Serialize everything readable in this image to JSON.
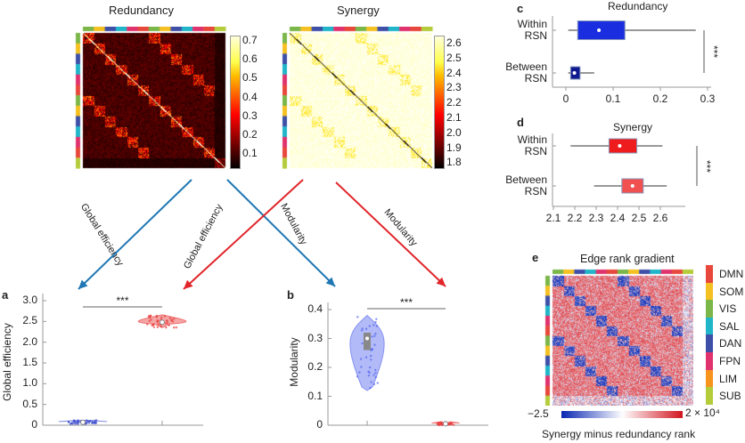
{
  "networks": [
    {
      "name": "DMN",
      "color": "#e8473b"
    },
    {
      "name": "SOM",
      "color": "#f5c021"
    },
    {
      "name": "VIS",
      "color": "#7ab648"
    },
    {
      "name": "SAL",
      "color": "#20b5c8"
    },
    {
      "name": "DAN",
      "color": "#3e4fa8"
    },
    {
      "name": "FPN",
      "color": "#e0336e"
    },
    {
      "name": "LIM",
      "color": "#f7941d"
    },
    {
      "name": "SUB",
      "color": "#b5cc3a"
    }
  ],
  "strip_order": [
    "VIS",
    "SOM",
    "DAN",
    "SAL",
    "FPN",
    "DMN",
    "VIS",
    "SOM",
    "DAN",
    "SAL",
    "FPN",
    "DMN",
    "SUB"
  ],
  "redundancy_matrix": {
    "title": "Redundancy",
    "colormap": "hot",
    "colorbar_ticks": [
      "0.7",
      "0.6",
      "0.5",
      "0.4",
      "0.3",
      "0.2",
      "0.1"
    ],
    "range": [
      0,
      0.72
    ]
  },
  "synergy_matrix": {
    "title": "Synergy",
    "colormap": "hot",
    "colorbar_ticks": [
      "2.6",
      "2.5",
      "2.4",
      "2.3",
      "2.2",
      "2.1",
      "2.0",
      "1.9",
      "1.8"
    ],
    "range": [
      1.75,
      2.62
    ]
  },
  "arrows": [
    {
      "label": "Global efficiency",
      "color": "#1f77b4"
    },
    {
      "label": "Modularity",
      "color": "#1f77b4"
    },
    {
      "label": "Global efficiency",
      "color": "#e0262b"
    },
    {
      "label": "Modularity",
      "color": "#e0262b"
    }
  ],
  "chart_data": [
    {
      "panel": "a",
      "type": "violin",
      "ylabel": "Global efficiency",
      "ylim": [
        0,
        3.0
      ],
      "yticks": [
        "0",
        "0.5",
        "1.0",
        "1.5",
        "2.0",
        "2.5",
        "3.0"
      ],
      "series": [
        {
          "color": "#3344cc",
          "median": 0.07,
          "min": 0.03,
          "max": 0.12
        },
        {
          "color": "#e83a3a",
          "median": 2.48,
          "min": 2.35,
          "max": 2.66
        }
      ],
      "significance": "***"
    },
    {
      "panel": "b",
      "type": "violin",
      "ylabel": "Modularity",
      "ylim": [
        0,
        0.4
      ],
      "yticks": [
        "0",
        "0.1",
        "0.2",
        "0.3",
        "0.4"
      ],
      "series": [
        {
          "color": "#5566ee",
          "median": 0.3,
          "q1": 0.26,
          "q3": 0.32,
          "min": 0.12,
          "max": 0.38
        },
        {
          "color": "#e83a3a",
          "median": 0.005,
          "min": 0.0,
          "max": 0.01
        }
      ],
      "significance": "***"
    },
    {
      "panel": "c",
      "type": "boxplot",
      "title": "Redundancy",
      "xlim": [
        0,
        0.3
      ],
      "xticks": [
        "0",
        "0.1",
        "0.2",
        "0.3"
      ],
      "categories": [
        "Within RSN",
        "Between RSN"
      ],
      "boxes": [
        {
          "min": 0.005,
          "q1": 0.025,
          "median": 0.07,
          "q3": 0.125,
          "max": 0.275,
          "color": "#1a2ee0"
        },
        {
          "min": 0.005,
          "q1": 0.01,
          "median": 0.018,
          "q3": 0.03,
          "max": 0.06,
          "color": "#101a90"
        }
      ],
      "significance": "***"
    },
    {
      "panel": "d",
      "type": "boxplot",
      "title": "Synergy",
      "xlim": [
        2.1,
        2.7
      ],
      "xticks": [
        "2.1",
        "2.2",
        "2.3",
        "2.4",
        "2.5",
        "2.6"
      ],
      "categories": [
        "Within RSN",
        "Between RSN"
      ],
      "boxes": [
        {
          "min": 2.18,
          "q1": 2.36,
          "median": 2.41,
          "q3": 2.49,
          "max": 2.61,
          "color": "#ee1c1c"
        },
        {
          "min": 2.29,
          "q1": 2.42,
          "median": 2.47,
          "q3": 2.52,
          "max": 2.63,
          "color": "#f05050"
        }
      ],
      "significance": "***"
    },
    {
      "panel": "e",
      "type": "heatmap",
      "title": "Edge rank gradient",
      "colorbar_min": "−2.5",
      "colorbar_max": "2 × 10⁴",
      "colorbar_label": "Synergy minus redundancy rank"
    }
  ]
}
